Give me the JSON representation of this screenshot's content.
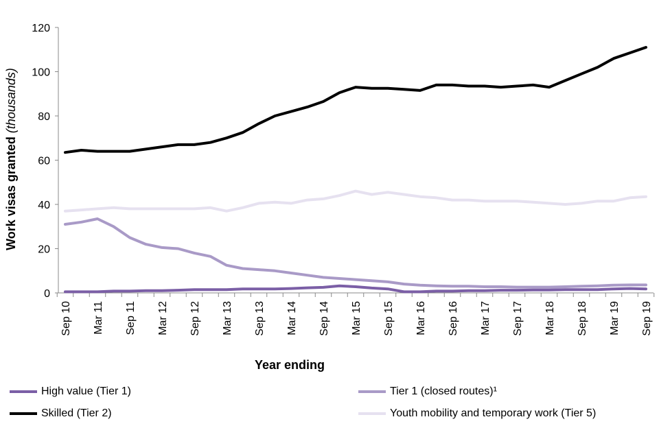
{
  "chart_data": {
    "type": "line",
    "title": "",
    "xlabel": "Year ending",
    "ylabel": "Work visas granted",
    "ylabel_unit": "(thousands)",
    "ylim": [
      0,
      120
    ],
    "yticks": [
      0,
      20,
      40,
      60,
      80,
      100,
      120
    ],
    "x": [
      "Sep 10",
      "Dec 10",
      "Mar 11",
      "Jun 11",
      "Sep 11",
      "Dec 11",
      "Mar 12",
      "Jun 12",
      "Sep 12",
      "Dec 12",
      "Mar 13",
      "Jun 13",
      "Sep 13",
      "Dec 13",
      "Mar 14",
      "Jun 14",
      "Sep 14",
      "Dec 14",
      "Mar 15",
      "Jun 15",
      "Sep 15",
      "Dec 15",
      "Mar 16",
      "Jun 16",
      "Sep 16",
      "Dec 16",
      "Mar 17",
      "Jun 17",
      "Sep 17",
      "Dec 17",
      "Mar 18",
      "Jun 18",
      "Sep 18",
      "Dec 18",
      "Mar 19",
      "Jun 19",
      "Sep 19"
    ],
    "xtick_labels": [
      "Sep 10",
      "Mar 11",
      "Sep 11",
      "Mar 12",
      "Sep 12",
      "Mar 13",
      "Sep 13",
      "Mar 14",
      "Sep 14",
      "Mar 15",
      "Sep 15",
      "Mar 16",
      "Sep 16",
      "Mar 17",
      "Sep 17",
      "Mar 18",
      "Sep 18",
      "Mar 19",
      "Sep 19"
    ],
    "series": [
      {
        "name": "High value (Tier 1)",
        "color": "#7b5fa6",
        "values": [
          0.5,
          0.5,
          0.5,
          0.8,
          0.8,
          1.0,
          1.0,
          1.2,
          1.5,
          1.5,
          1.5,
          1.8,
          1.8,
          1.8,
          2.0,
          2.3,
          2.5,
          3.2,
          2.8,
          2.2,
          1.8,
          0.5,
          0.5,
          0.8,
          0.8,
          1.0,
          1.0,
          1.2,
          1.2,
          1.3,
          1.3,
          1.5,
          1.5,
          1.5,
          1.8,
          2.0,
          1.8
        ]
      },
      {
        "name": "Tier 1 (closed routes)¹",
        "color": "#a99ac7",
        "values": [
          31.0,
          32.0,
          33.5,
          30.0,
          25.0,
          22.0,
          20.5,
          20.0,
          18.0,
          16.5,
          12.5,
          11.0,
          10.5,
          10.0,
          9.0,
          8.0,
          7.0,
          6.5,
          6.0,
          5.5,
          5.0,
          4.0,
          3.5,
          3.2,
          3.0,
          3.0,
          2.8,
          2.8,
          2.6,
          2.6,
          2.6,
          2.8,
          3.0,
          3.2,
          3.5,
          3.6,
          3.6
        ]
      },
      {
        "name": "Skilled (Tier 2)",
        "color": "#000000",
        "values": [
          63.5,
          64.5,
          64.0,
          64.0,
          64.0,
          65.0,
          66.0,
          67.0,
          67.0,
          68.0,
          70.0,
          72.5,
          76.5,
          80.0,
          82.0,
          84.0,
          86.5,
          90.5,
          93.0,
          92.5,
          92.5,
          92.0,
          91.5,
          94.0,
          94.0,
          93.5,
          93.5,
          93.0,
          93.5,
          94.0,
          93.0,
          96.0,
          99.0,
          102.0,
          106.0,
          108.5,
          111.0
        ]
      },
      {
        "name": "Youth mobility and temporary work (Tier 5)",
        "color": "#e6e1f0",
        "values": [
          37.0,
          37.5,
          38.0,
          38.5,
          38.0,
          38.0,
          38.0,
          38.0,
          38.0,
          38.5,
          37.0,
          38.5,
          40.5,
          41.0,
          40.5,
          42.0,
          42.5,
          44.0,
          46.0,
          44.5,
          45.5,
          44.5,
          43.5,
          43.0,
          42.0,
          42.0,
          41.5,
          41.5,
          41.5,
          41.0,
          40.5,
          40.0,
          40.5,
          41.5,
          41.5,
          43.0,
          43.5
        ]
      }
    ],
    "legend_position": "bottom",
    "grid": false
  }
}
